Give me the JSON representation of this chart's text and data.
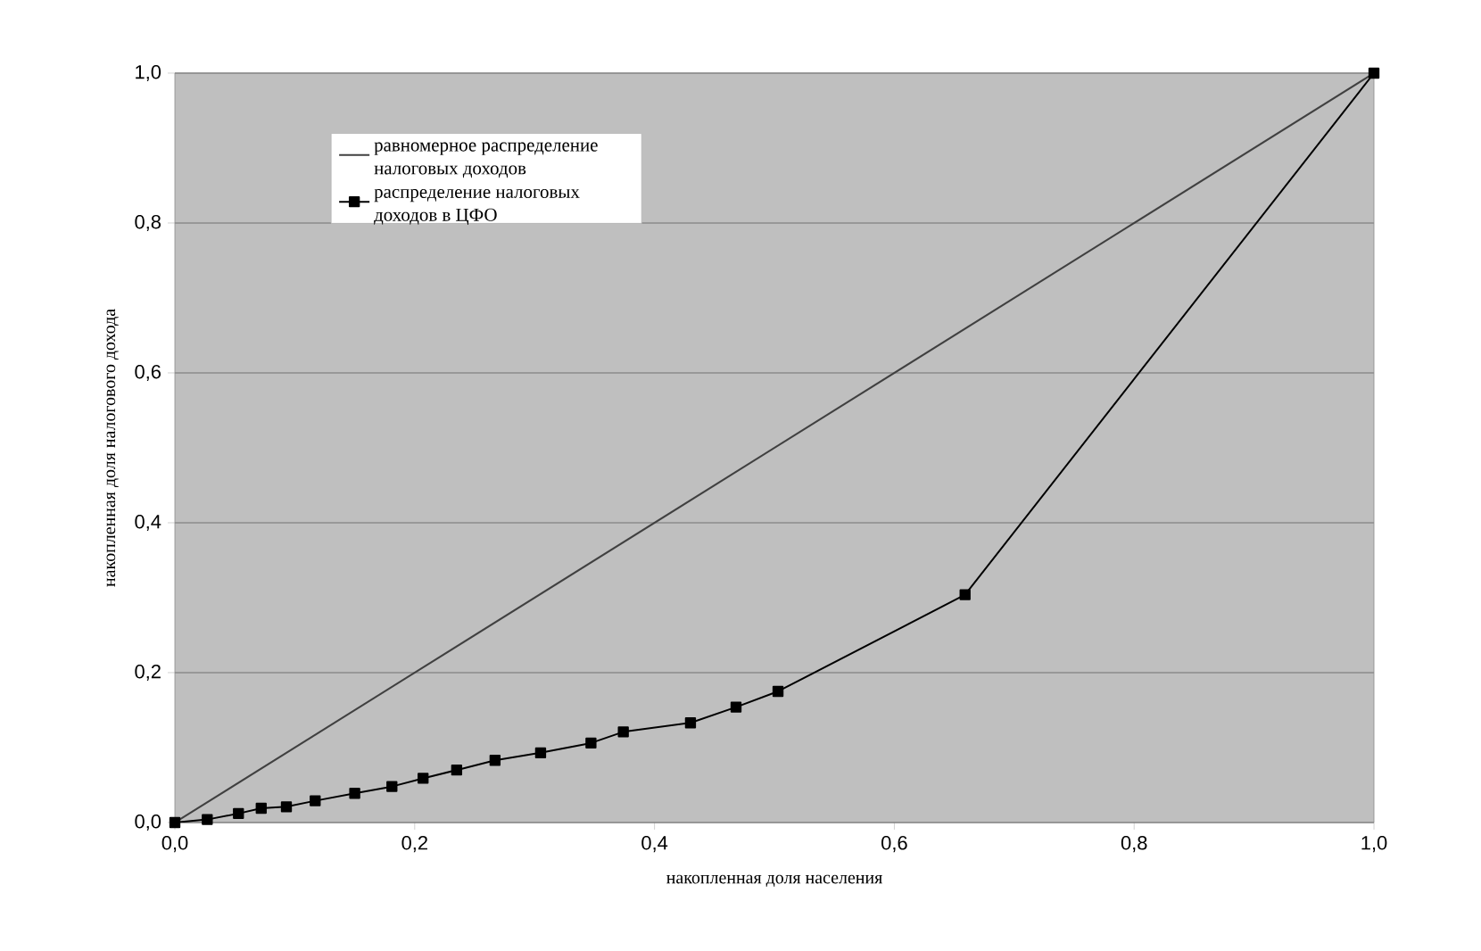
{
  "chart_data": {
    "type": "line",
    "xlabel": "накопленная доля населения",
    "ylabel": "накопленная доля налогового дохода",
    "xlim": [
      0,
      1
    ],
    "ylim": [
      0,
      1
    ],
    "xticks": [
      {
        "value": 0,
        "label": "0,0"
      },
      {
        "value": 0.2,
        "label": "0,2"
      },
      {
        "value": 0.4,
        "label": "0,4"
      },
      {
        "value": 0.6,
        "label": "0,6"
      },
      {
        "value": 0.8,
        "label": "0,8"
      },
      {
        "value": 1,
        "label": "1,0"
      }
    ],
    "yticks": [
      {
        "value": 0,
        "label": "0,0"
      },
      {
        "value": 0.2,
        "label": "0,2"
      },
      {
        "value": 0.4,
        "label": "0,4"
      },
      {
        "value": 0.6,
        "label": "0,6"
      },
      {
        "value": 0.8,
        "label": "0,8"
      },
      {
        "value": 1,
        "label": "1,0"
      }
    ],
    "grid": "y",
    "legend": "top left",
    "series": [
      {
        "name": "равномерное распределение налоговых доходов",
        "color": "#404040",
        "marker": "none",
        "x": [
          0,
          1
        ],
        "values": [
          0,
          1
        ]
      },
      {
        "name": "распределение налоговых доходов в ЦФО",
        "color": "#000000",
        "marker": "square",
        "x": [
          0,
          0.027,
          0.053,
          0.072,
          0.093,
          0.117,
          0.15,
          0.181,
          0.207,
          0.235,
          0.267,
          0.305,
          0.347,
          0.374,
          0.43,
          0.468,
          0.503,
          0.659,
          1
        ],
        "values": [
          0,
          0.004,
          0.012,
          0.019,
          0.021,
          0.029,
          0.039,
          0.048,
          0.059,
          0.07,
          0.083,
          0.093,
          0.106,
          0.121,
          0.133,
          0.154,
          0.175,
          0.304,
          1
        ]
      }
    ]
  }
}
